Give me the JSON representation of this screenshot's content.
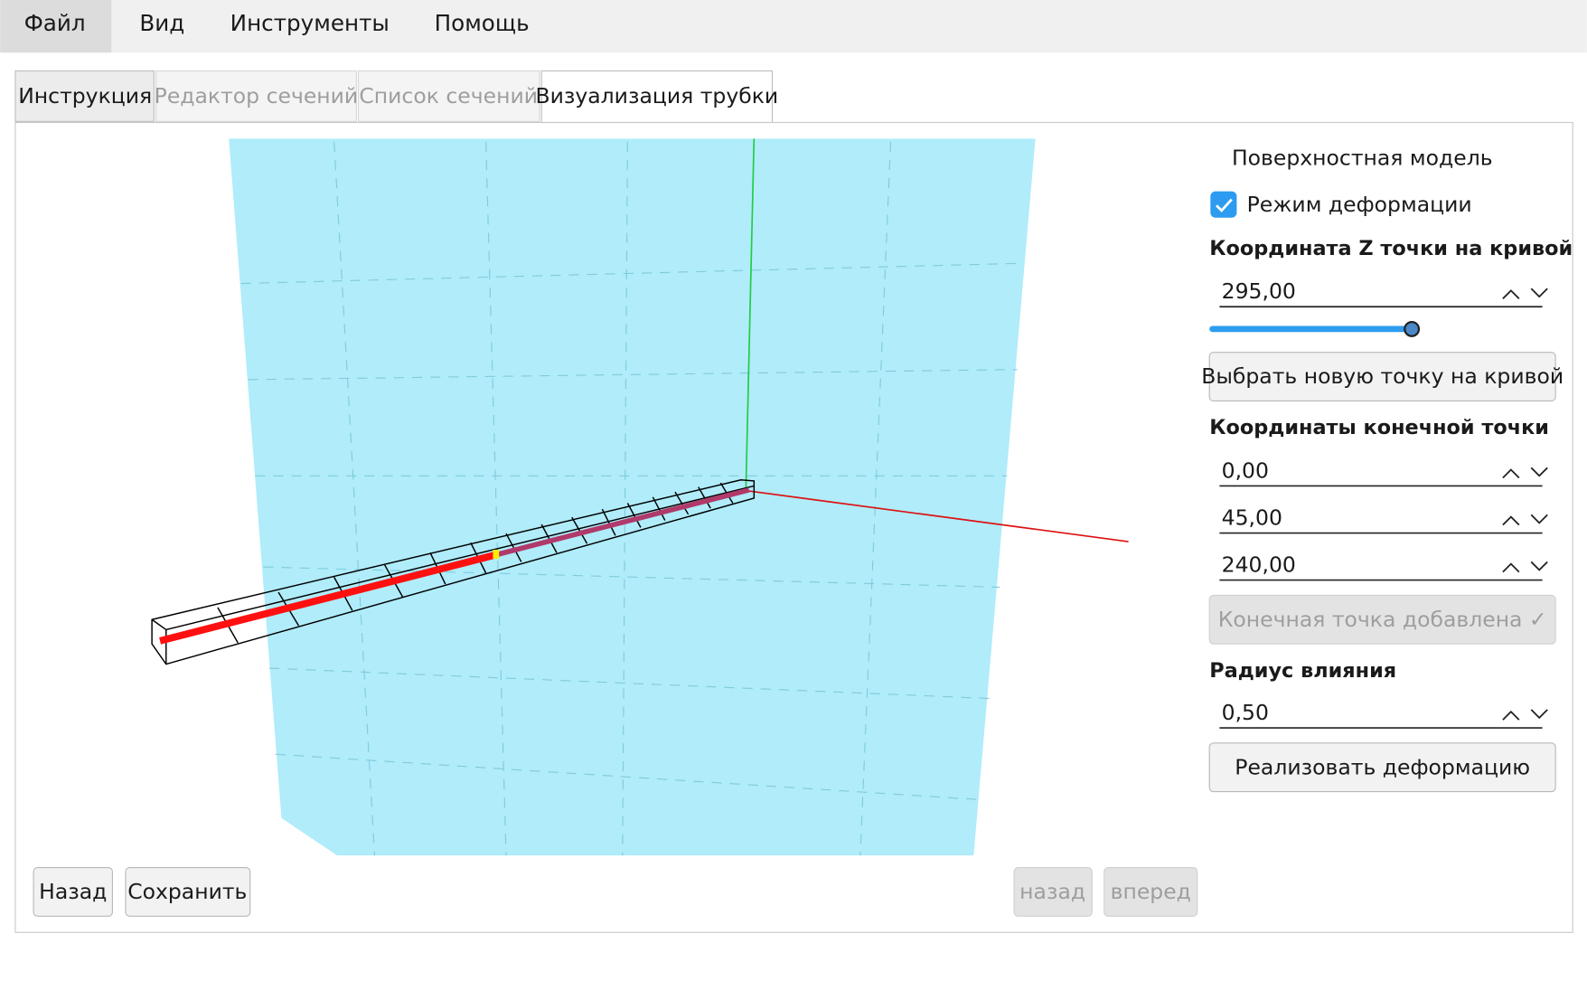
{
  "menu": [
    "Файл",
    "Вид",
    "Инструменты",
    "Помощь"
  ],
  "tabs": [
    "Инструкция",
    "Редактор сечений",
    "Список сечений",
    "Визуализация трубки"
  ],
  "panel": {
    "model_label": "Поверхностная модель",
    "checkbox_label": "Режим деформации",
    "z_heading": "Координата Z точки на кривой",
    "z_value": "295,00",
    "pick_button": "Выбрать новую точку на кривой",
    "end_heading": "Координаты конечной точки",
    "end_values": [
      "0,00",
      "45,00",
      "240,00"
    ],
    "end_added_button": "Конечная точка добавлена ✓",
    "radius_heading": "Радиус влияния",
    "radius_value": "0,50",
    "apply_button": "Реализовать деформацию"
  },
  "footer": {
    "back": "Назад",
    "save": "Сохранить",
    "undo": "назад",
    "redo": "вперед"
  }
}
